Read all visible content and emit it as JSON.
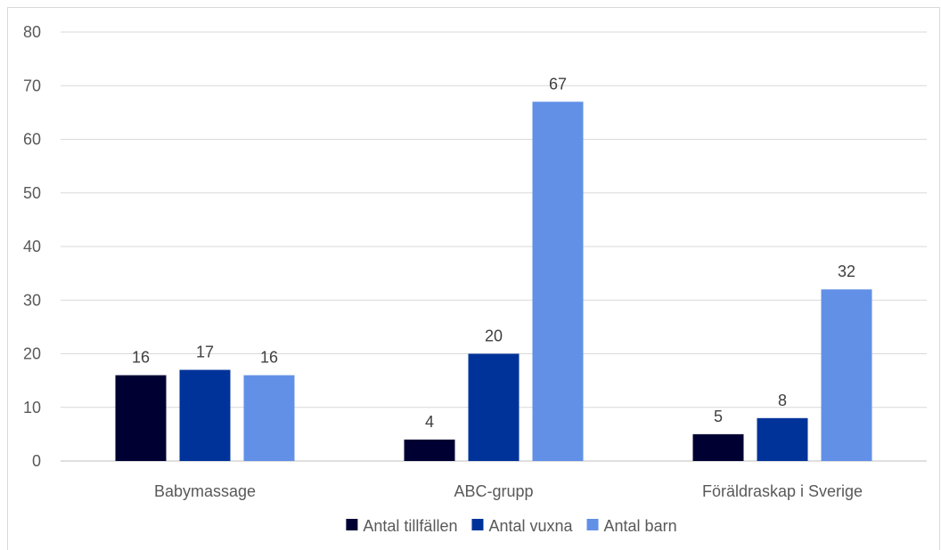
{
  "chart_data": {
    "type": "bar",
    "title": "",
    "categories": [
      "Babymassage",
      "ABC-grupp",
      "Föräldraskap i Sverige"
    ],
    "series": [
      {
        "name": "Antal tillfällen",
        "values": [
          16,
          4,
          5
        ],
        "color": "#000033"
      },
      {
        "name": "Antal vuxna",
        "values": [
          17,
          20,
          8
        ],
        "color": "#003399"
      },
      {
        "name": "Antal barn",
        "values": [
          16,
          67,
          32
        ],
        "color": "#6290E6"
      }
    ],
    "ylim": [
      0,
      80
    ],
    "yticks": [
      0,
      10,
      20,
      30,
      40,
      50,
      60,
      70,
      80
    ],
    "grid": true,
    "legend": "bottom",
    "data_labels": true
  }
}
